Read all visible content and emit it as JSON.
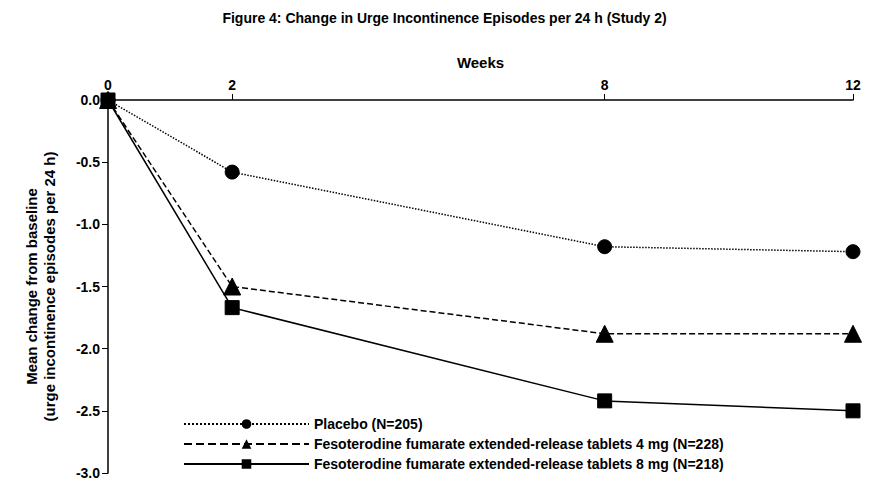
{
  "chart_data": {
    "type": "line",
    "title": "Figure 4: Change in Urge Incontinence Episodes per 24 h (Study 2)",
    "x_label": "Weeks",
    "y_label": "Mean change from baseline\n(urge incontinence episodes per 24 h)",
    "x": [
      0,
      2,
      8,
      12
    ],
    "xlim": [
      0,
      12
    ],
    "xticks": [
      0,
      2,
      8,
      12
    ],
    "ylim": [
      -3,
      0
    ],
    "yticks": [
      {
        "value": 0,
        "label": "0.0"
      },
      -0.5,
      {
        "value": -1,
        "label": "-1.0"
      },
      -1.5,
      {
        "value": -2,
        "label": "-2.0"
      },
      -2.5,
      {
        "value": -3,
        "label": "-3.0"
      }
    ],
    "grid": false,
    "legend": "bottom-left",
    "series": [
      {
        "name": "Placebo (N=205)",
        "color": "#000000",
        "marker": "circle",
        "line_style": "dotted",
        "values": [
          0,
          -0.58,
          -1.18,
          -1.22
        ]
      },
      {
        "name": "Fesoterodine fumarate extended-release tablets 4 mg (N=228)",
        "color": "#000000",
        "marker": "triangle",
        "line_style": "dashed",
        "values": [
          0,
          -1.5,
          -1.88,
          -1.88
        ]
      },
      {
        "name": "Fesoterodine fumarate extended-release tablets 8 mg (N=218)",
        "color": "#000000",
        "marker": "square",
        "line_style": "solid",
        "values": [
          0,
          -1.67,
          -2.42,
          -2.5
        ]
      }
    ]
  }
}
